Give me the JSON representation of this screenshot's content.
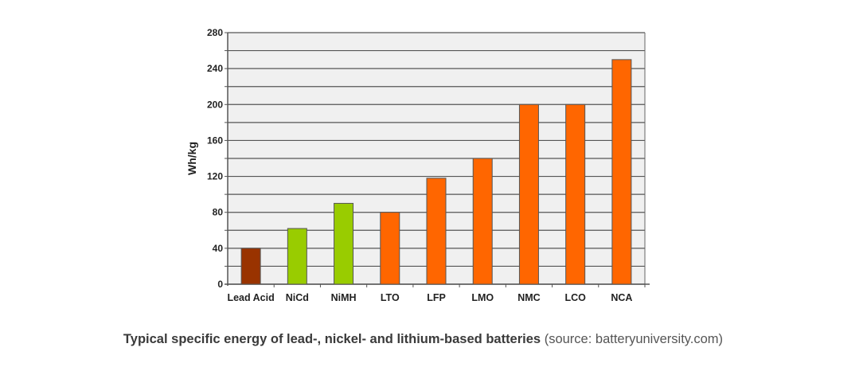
{
  "chart_data": {
    "type": "bar",
    "title": "",
    "xlabel": "",
    "ylabel": "Wh/kg",
    "ylim": [
      0,
      280
    ],
    "yticks": [
      0,
      40,
      80,
      120,
      160,
      200,
      240,
      280
    ],
    "grid_step": 20,
    "grid": true,
    "categories": [
      "Lead Acid",
      "NiCd",
      "NiMH",
      "LTO",
      "LFP",
      "LMO",
      "NMC",
      "LCO",
      "NCA"
    ],
    "values": [
      40,
      62,
      90,
      80,
      118,
      140,
      200,
      200,
      250
    ],
    "colors": [
      "#993300",
      "#99cc00",
      "#99cc00",
      "#ff6600",
      "#ff6600",
      "#ff6600",
      "#ff6600",
      "#ff6600",
      "#ff6600"
    ],
    "background": "#f0f0f0"
  },
  "caption": {
    "bold": "Typical specific energy of lead-, nickel- and lithium-based batteries",
    "source": "(source: batteryuniversity.com)"
  }
}
